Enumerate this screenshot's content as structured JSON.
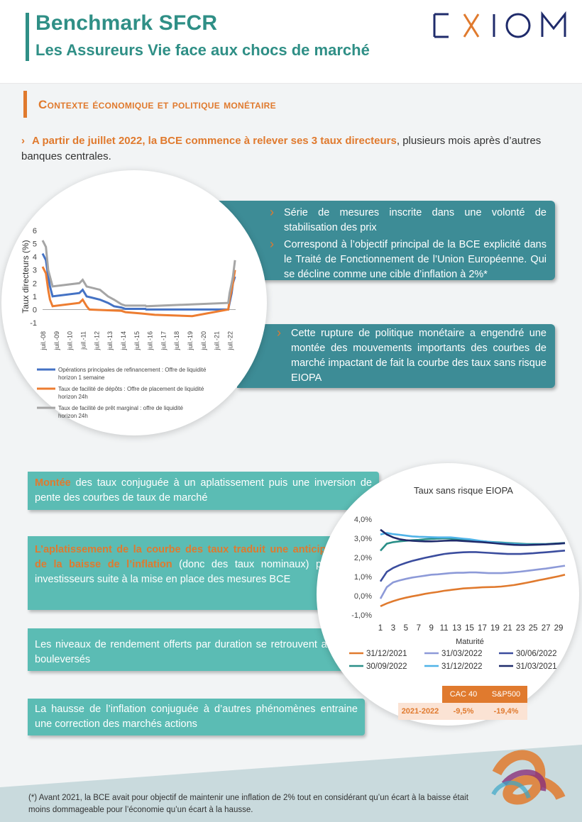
{
  "header": {
    "title": "Benchmark SFCR",
    "subtitle": "Les Assureurs Vie face aux chocs de marché",
    "logo_text": "EXIOM"
  },
  "section": {
    "title": "Contexte économique et politique monétaire"
  },
  "intro": {
    "highlight": "A partir de juillet 2022, la BCE commence à relever ses 3 taux directeurs",
    "rest": ", plusieurs mois après d’autres banques centrales."
  },
  "banner1": {
    "bullets": [
      "Série de mesures inscrite dans une volonté de stabilisation des prix",
      "Correspond à l’objectif principal de la BCE explicité dans le Traité de Fonctionnement de l’Union Européenne. Qui se décline comme une cible d’inflation à 2%*"
    ]
  },
  "banner2": {
    "bullets": [
      "Cette rupture de politique monétaire a engendré une montée des mouvements importants des courbes de marché impactant de fait la courbe des taux sans risque EIOPA"
    ]
  },
  "boxes": {
    "b1_hl": "Montée",
    "b1_rest": " des taux conjuguée à un aplatissement puis une inversion de pente des courbes de taux de marché",
    "b2_hl": "L’aplatissement de la courbe des taux traduit une anticipation de la baisse de l’inflation",
    "b2_rest": " (donc des taux nominaux) par les investisseurs suite à la mise en place des mesures BCE",
    "b3": "Les niveaux de rendement offerts par duration se retrouvent alors bouleversés",
    "b4": "La hausse de l’inflation conjuguée à d’autres phénomènes entraine une correction des marchés actions"
  },
  "table": {
    "headers": [
      "CAC 40",
      "S&P500"
    ],
    "row_label": "2021-2022",
    "values": [
      "-9,5%",
      "-19,4%"
    ]
  },
  "footnote": "(*) Avant 2021, la BCE avait pour objectif de maintenir une inflation de 2% tout en considérant qu’un écart à la baisse était moins dommageable pour l’économie qu’un écart à la hausse.",
  "colors": {
    "teal": "#2f8f86",
    "orange": "#e07a2e",
    "banner": "#3d8c96",
    "box": "#5bbcb4"
  },
  "chart_data": [
    {
      "type": "line",
      "title": "",
      "ylabel": "Taux directeurs (%)",
      "xlabel": "",
      "ylim": [
        -1,
        6
      ],
      "yticks": [
        -1,
        0,
        1,
        2,
        3,
        4,
        5,
        6
      ],
      "x_ticks": [
        "juil.-08",
        "juil.-09",
        "juil.-10",
        "juil.-11",
        "juil.-12",
        "juil.-13",
        "juil.-14",
        "juil.-15",
        "juil.-16",
        "juil.-17",
        "juil.-18",
        "juil.-19",
        "juil.-20",
        "juil.-21",
        "juil.-22"
      ],
      "series": [
        {
          "name": "Opérations principales de refinancement : Offre de liquidité horizon 1 semaine",
          "color": "#4472c4",
          "points": [
            [
              0,
              4.25
            ],
            [
              0.25,
              3.75
            ],
            [
              0.42,
              2.5
            ],
            [
              0.55,
              1.75
            ],
            [
              0.75,
              1.0
            ],
            [
              2.75,
              1.25
            ],
            [
              3.0,
              1.5
            ],
            [
              3.3,
              1.0
            ],
            [
              4.3,
              0.75
            ],
            [
              4.9,
              0.5
            ],
            [
              5.35,
              0.25
            ],
            [
              5.9,
              0.15
            ],
            [
              6.2,
              0.05
            ],
            [
              7.7,
              0.05
            ],
            [
              7.75,
              0.0
            ],
            [
              13.9,
              0.0
            ],
            [
              14.0,
              0.5
            ],
            [
              14.15,
              1.25
            ],
            [
              14.25,
              2.0
            ],
            [
              14.4,
              2.5
            ]
          ]
        },
        {
          "name": "Taux de facilité de dépôts : Offre de placement de liquidité horizon 24h",
          "color": "#ed7d31",
          "points": [
            [
              0,
              3.25
            ],
            [
              0.25,
              2.75
            ],
            [
              0.42,
              1.5
            ],
            [
              0.55,
              0.75
            ],
            [
              0.75,
              0.25
            ],
            [
              2.75,
              0.5
            ],
            [
              3.0,
              0.75
            ],
            [
              3.3,
              0.25
            ],
            [
              3.5,
              0.0
            ],
            [
              5.9,
              -0.1
            ],
            [
              6.2,
              -0.2
            ],
            [
              7.4,
              -0.3
            ],
            [
              8.4,
              -0.4
            ],
            [
              11.2,
              -0.5
            ],
            [
              13.9,
              0.0
            ],
            [
              14.0,
              0.75
            ],
            [
              14.15,
              1.5
            ],
            [
              14.25,
              2.0
            ],
            [
              14.4,
              3.0
            ]
          ]
        },
        {
          "name": "Taux de facilité de prêt marginal : offre de liquidité horizon 24h",
          "color": "#a5a5a5",
          "points": [
            [
              0,
              5.25
            ],
            [
              0.25,
              4.75
            ],
            [
              0.42,
              3.0
            ],
            [
              0.55,
              2.5
            ],
            [
              0.75,
              1.75
            ],
            [
              2.75,
              2.0
            ],
            [
              3.0,
              2.25
            ],
            [
              3.3,
              1.75
            ],
            [
              4.3,
              1.5
            ],
            [
              4.9,
              1.0
            ],
            [
              5.35,
              0.75
            ],
            [
              5.9,
              0.4
            ],
            [
              6.2,
              0.3
            ],
            [
              7.7,
              0.3
            ],
            [
              7.75,
              0.25
            ],
            [
              13.9,
              0.5
            ],
            [
              14.0,
              1.25
            ],
            [
              14.15,
              2.0
            ],
            [
              14.25,
              2.5
            ],
            [
              14.4,
              3.75
            ]
          ]
        }
      ]
    },
    {
      "type": "line",
      "title": "Taux sans risque EIOPA",
      "xlabel": "Maturité",
      "ylabel": "",
      "ylim": [
        -1,
        4
      ],
      "yticks": [
        "-1,0%",
        "0,0%",
        "1,0%",
        "2,0%",
        "3,0%",
        "4,0%"
      ],
      "x_ticks": [
        "1",
        "3",
        "5",
        "7",
        "9",
        "11",
        "13",
        "15",
        "17",
        "19",
        "21",
        "23",
        "25",
        "27",
        "29"
      ],
      "series": [
        {
          "name": "31/12/2021",
          "color": "#e07a2e",
          "values": [
            -0.55,
            -0.4,
            -0.28,
            -0.18,
            -0.1,
            -0.03,
            0.03,
            0.1,
            0.15,
            0.2,
            0.26,
            0.3,
            0.34,
            0.38,
            0.4,
            0.42,
            0.44,
            0.45,
            0.46,
            0.48,
            0.52,
            0.56,
            0.62,
            0.68,
            0.75,
            0.82,
            0.88,
            0.95,
            1.02,
            1.1
          ]
        },
        {
          "name": "31/03/2022",
          "color": "#8d9ad8",
          "values": [
            -0.15,
            0.45,
            0.7,
            0.8,
            0.88,
            0.95,
            1.0,
            1.05,
            1.1,
            1.12,
            1.15,
            1.18,
            1.2,
            1.2,
            1.22,
            1.22,
            1.2,
            1.18,
            1.18,
            1.18,
            1.2,
            1.23,
            1.26,
            1.3,
            1.34,
            1.38,
            1.42,
            1.47,
            1.52,
            1.57
          ]
        },
        {
          "name": "30/06/2022",
          "color": "#3b4d9e",
          "values": [
            0.75,
            1.25,
            1.45,
            1.6,
            1.72,
            1.82,
            1.9,
            1.98,
            2.05,
            2.12,
            2.18,
            2.22,
            2.25,
            2.27,
            2.28,
            2.28,
            2.26,
            2.24,
            2.22,
            2.2,
            2.18,
            2.18,
            2.18,
            2.2,
            2.22,
            2.25,
            2.27,
            2.3,
            2.33,
            2.36
          ]
        },
        {
          "name": "30/09/2022",
          "color": "#2a8f88",
          "values": [
            2.35,
            2.72,
            2.8,
            2.84,
            2.87,
            2.9,
            2.92,
            2.95,
            2.97,
            2.98,
            3.0,
            2.98,
            2.95,
            2.92,
            2.9,
            2.88,
            2.85,
            2.82,
            2.8,
            2.78,
            2.76,
            2.74,
            2.72,
            2.7,
            2.7,
            2.7,
            2.7,
            2.72,
            2.74,
            2.76
          ]
        },
        {
          "name": "31/12/2022",
          "color": "#4fb3e8",
          "values": [
            3.2,
            3.28,
            3.22,
            3.18,
            3.14,
            3.1,
            3.08,
            3.07,
            3.06,
            3.05,
            3.05,
            3.05,
            3.02,
            2.98,
            2.95,
            2.9,
            2.85,
            2.82,
            2.78,
            2.75,
            2.72,
            2.7,
            2.68,
            2.67,
            2.67,
            2.68,
            2.69,
            2.7,
            2.72,
            2.74
          ]
        },
        {
          "name": "31/03/2021",
          "color": "#1f2b6b",
          "values": [
            3.45,
            3.2,
            3.05,
            2.95,
            2.9,
            2.87,
            2.85,
            2.84,
            2.84,
            2.85,
            2.87,
            2.88,
            2.88,
            2.86,
            2.84,
            2.82,
            2.8,
            2.77,
            2.74,
            2.71,
            2.68,
            2.66,
            2.65,
            2.65,
            2.66,
            2.67,
            2.68,
            2.7,
            2.72,
            2.75
          ]
        }
      ]
    }
  ]
}
